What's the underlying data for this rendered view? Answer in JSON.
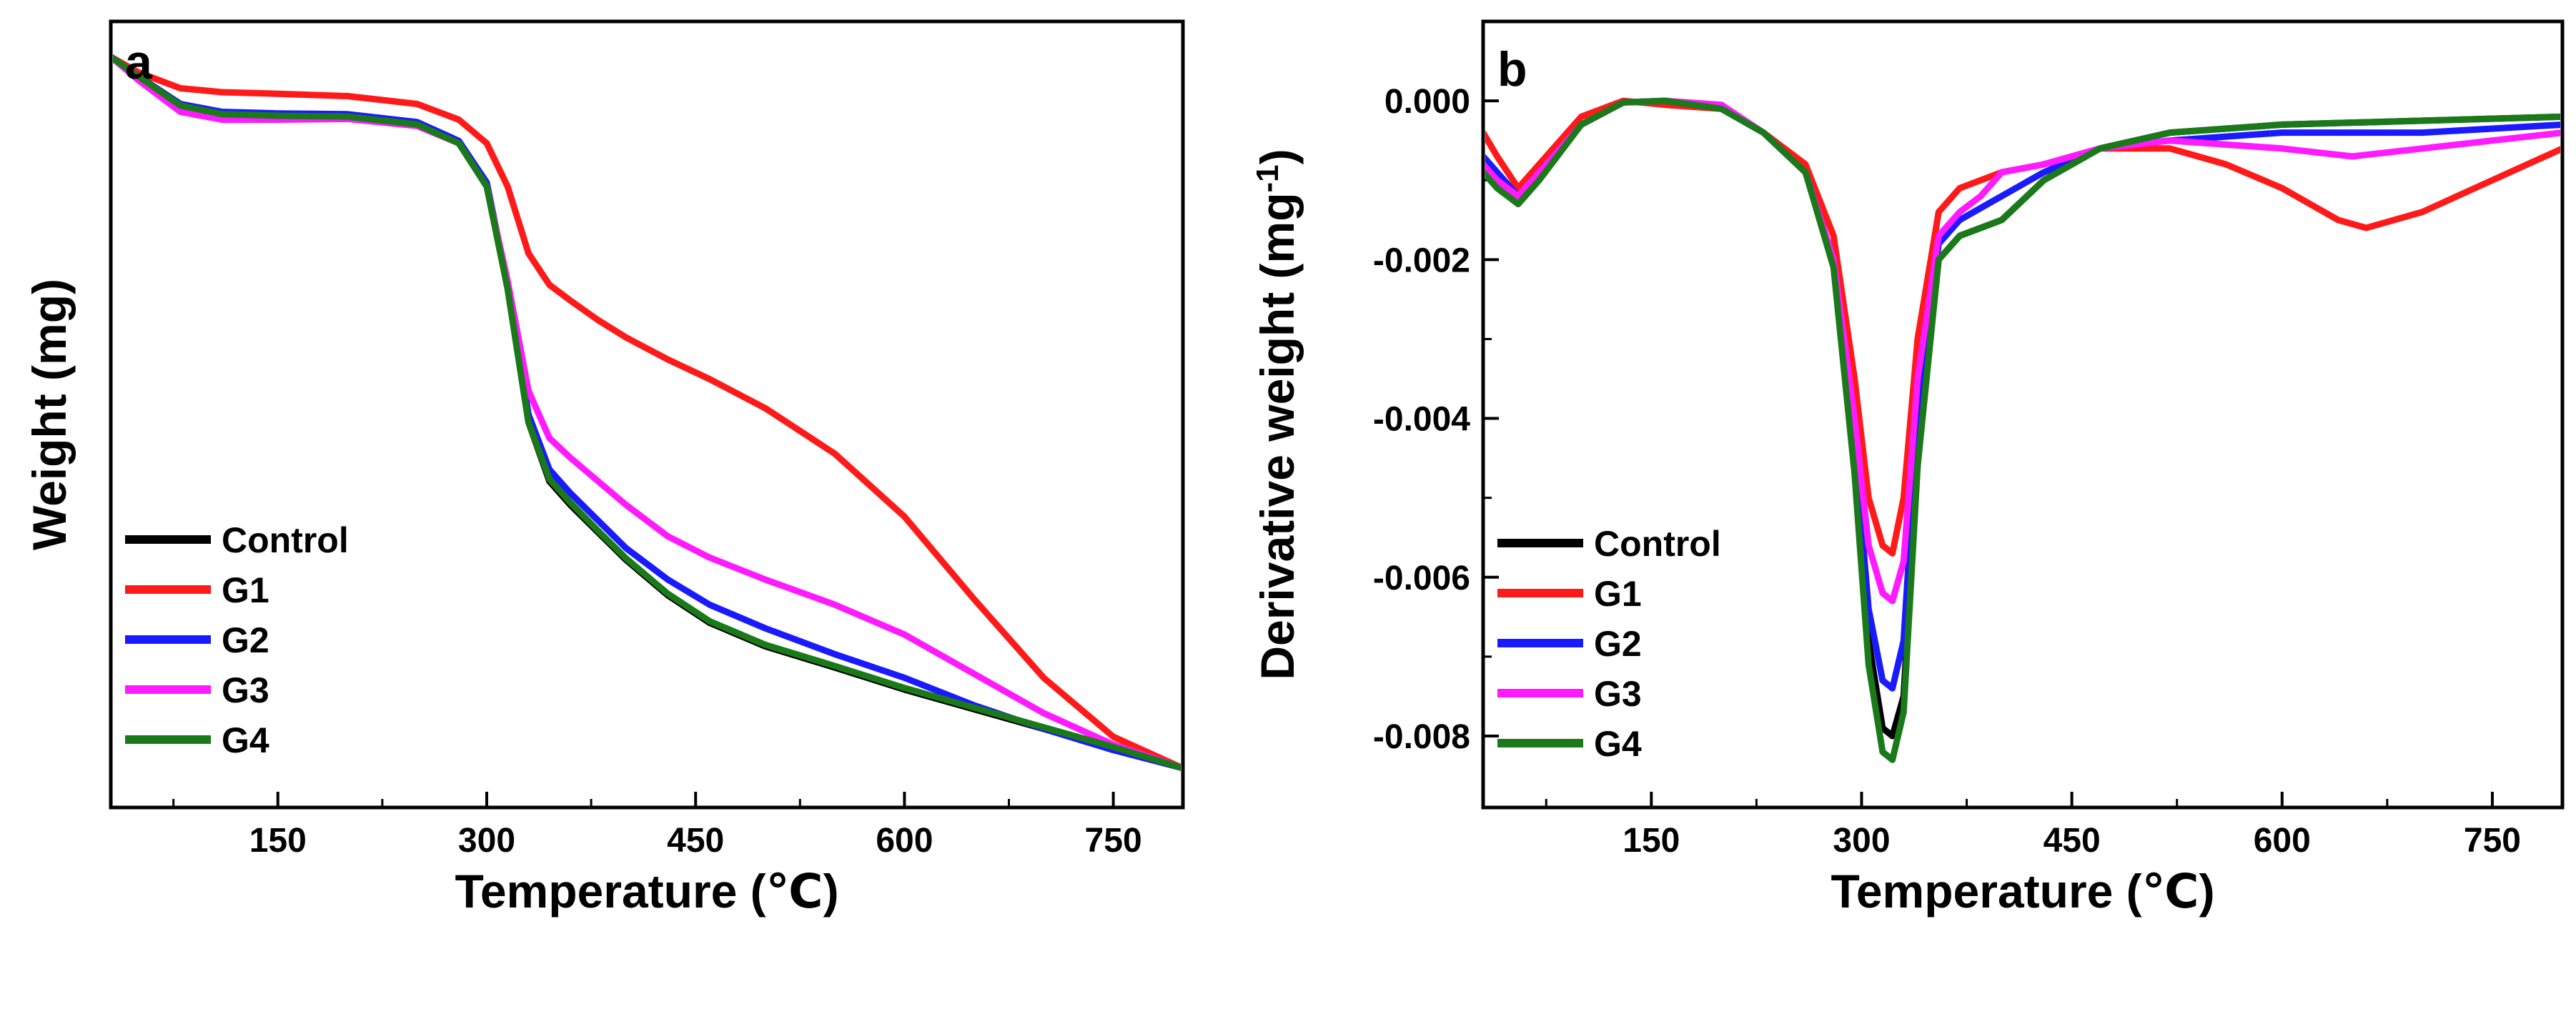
{
  "chart_data": [
    {
      "panel": "a",
      "type": "line",
      "xlabel": "Temperature (℃)",
      "ylabel": "Weight (mg)",
      "xlim": [
        30,
        800
      ],
      "ylim": [
        0,
        1
      ],
      "xticks": [
        150,
        300,
        450,
        600,
        750
      ],
      "xtick_labels": [
        "150",
        "300",
        "450",
        "600",
        "750"
      ],
      "grid": false,
      "legend_position": "bottom-left",
      "series": [
        {
          "name": "Control",
          "color": "#000000",
          "x": [
            30,
            50,
            80,
            110,
            150,
            200,
            250,
            280,
            300,
            315,
            330,
            345,
            360,
            380,
            400,
            430,
            460,
            500,
            550,
            600,
            650,
            700,
            750,
            800
          ],
          "y": [
            0.955,
            0.93,
            0.895,
            0.882,
            0.88,
            0.879,
            0.87,
            0.845,
            0.79,
            0.66,
            0.49,
            0.415,
            0.385,
            0.35,
            0.315,
            0.27,
            0.235,
            0.205,
            0.178,
            0.15,
            0.125,
            0.1,
            0.075,
            0.05
          ]
        },
        {
          "name": "G1",
          "color": "#ff1a1a",
          "x": [
            30,
            50,
            80,
            110,
            150,
            200,
            250,
            280,
            300,
            315,
            330,
            345,
            360,
            380,
            400,
            430,
            460,
            500,
            550,
            600,
            650,
            700,
            750,
            800
          ],
          "y": [
            0.955,
            0.935,
            0.915,
            0.91,
            0.908,
            0.905,
            0.895,
            0.875,
            0.845,
            0.79,
            0.705,
            0.665,
            0.645,
            0.62,
            0.598,
            0.57,
            0.545,
            0.508,
            0.45,
            0.37,
            0.265,
            0.165,
            0.09,
            0.05
          ]
        },
        {
          "name": "G2",
          "color": "#1a1aff",
          "x": [
            30,
            50,
            80,
            110,
            150,
            200,
            250,
            280,
            300,
            315,
            330,
            345,
            360,
            380,
            400,
            430,
            460,
            500,
            550,
            600,
            650,
            700,
            750,
            800
          ],
          "y": [
            0.955,
            0.93,
            0.895,
            0.885,
            0.883,
            0.882,
            0.872,
            0.848,
            0.795,
            0.665,
            0.5,
            0.43,
            0.4,
            0.365,
            0.33,
            0.29,
            0.258,
            0.228,
            0.195,
            0.165,
            0.13,
            0.1,
            0.073,
            0.05
          ]
        },
        {
          "name": "G3",
          "color": "#ff1aff",
          "x": [
            30,
            50,
            80,
            110,
            150,
            200,
            250,
            280,
            300,
            315,
            330,
            345,
            360,
            380,
            400,
            430,
            460,
            500,
            550,
            600,
            650,
            700,
            750,
            800
          ],
          "y": [
            0.955,
            0.925,
            0.885,
            0.875,
            0.875,
            0.876,
            0.867,
            0.845,
            0.79,
            0.67,
            0.53,
            0.47,
            0.445,
            0.415,
            0.385,
            0.345,
            0.318,
            0.29,
            0.258,
            0.22,
            0.17,
            0.12,
            0.08,
            0.05
          ]
        },
        {
          "name": "G4",
          "color": "#1a7a1a",
          "x": [
            30,
            50,
            80,
            110,
            150,
            200,
            250,
            280,
            300,
            315,
            330,
            345,
            360,
            380,
            400,
            430,
            460,
            500,
            550,
            600,
            650,
            700,
            750,
            800
          ],
          "y": [
            0.955,
            0.93,
            0.893,
            0.882,
            0.88,
            0.879,
            0.869,
            0.845,
            0.79,
            0.66,
            0.49,
            0.418,
            0.388,
            0.352,
            0.317,
            0.272,
            0.237,
            0.207,
            0.18,
            0.152,
            0.127,
            0.102,
            0.077,
            0.05
          ]
        }
      ]
    },
    {
      "panel": "b",
      "type": "line",
      "xlabel": "Temperature (℃)",
      "ylabel": "Derivative weight (mg",
      "ylabel_superscript": "-1",
      "ylabel_suffix": ")",
      "xlim": [
        30,
        800
      ],
      "ylim": [
        -0.0089,
        0.001
      ],
      "xticks": [
        150,
        300,
        450,
        600,
        750
      ],
      "xtick_labels": [
        "150",
        "300",
        "450",
        "600",
        "750"
      ],
      "yticks": [
        0.0,
        -0.002,
        -0.004,
        -0.006,
        -0.008
      ],
      "ytick_labels": [
        "0.000",
        "-0.002",
        "-0.004",
        "-0.006",
        "-0.008"
      ],
      "grid": false,
      "legend_position": "bottom-left",
      "series": [
        {
          "name": "Control",
          "color": "#000000",
          "x": [
            30,
            40,
            55,
            70,
            100,
            130,
            160,
            200,
            230,
            260,
            280,
            295,
            305,
            315,
            322,
            330,
            340,
            355,
            370,
            400,
            430,
            470,
            520,
            600,
            700,
            800
          ],
          "y": [
            -0.0008,
            -0.001,
            -0.0012,
            -0.0009,
            -0.0003,
            -2e-05,
            0.0,
            -0.0001,
            -0.0004,
            -0.0009,
            -0.002,
            -0.0045,
            -0.0068,
            -0.0079,
            -0.008,
            -0.0075,
            -0.0045,
            -0.002,
            -0.0017,
            -0.0015,
            -0.001,
            -0.0006,
            -0.0004,
            -0.0003,
            -0.00025,
            -0.0002
          ]
        },
        {
          "name": "G1",
          "color": "#ff1a1a",
          "x": [
            30,
            40,
            55,
            70,
            100,
            130,
            160,
            200,
            230,
            260,
            280,
            295,
            305,
            315,
            322,
            330,
            340,
            355,
            370,
            400,
            430,
            470,
            520,
            560,
            600,
            640,
            660,
            700,
            750,
            800
          ],
          "y": [
            -0.0004,
            -0.0007,
            -0.0011,
            -0.0008,
            -0.0002,
            0.0,
            -5e-05,
            -0.0001,
            -0.0004,
            -0.0008,
            -0.0017,
            -0.0035,
            -0.005,
            -0.0056,
            -0.0057,
            -0.005,
            -0.003,
            -0.0014,
            -0.0011,
            -0.0009,
            -0.0008,
            -0.0006,
            -0.0006,
            -0.0008,
            -0.0011,
            -0.0015,
            -0.0016,
            -0.0014,
            -0.001,
            -0.0006
          ]
        },
        {
          "name": "G2",
          "color": "#1a1aff",
          "x": [
            30,
            40,
            55,
            70,
            100,
            130,
            160,
            200,
            230,
            260,
            280,
            295,
            305,
            315,
            322,
            330,
            340,
            355,
            370,
            400,
            430,
            470,
            520,
            600,
            700,
            800
          ],
          "y": [
            -0.0007,
            -0.0009,
            -0.0012,
            -0.0009,
            -0.0003,
            -2e-05,
            0.0,
            -0.0001,
            -0.0004,
            -0.0009,
            -0.002,
            -0.0043,
            -0.0064,
            -0.0073,
            -0.0074,
            -0.0068,
            -0.004,
            -0.0018,
            -0.0015,
            -0.0012,
            -0.0009,
            -0.0006,
            -0.0005,
            -0.0004,
            -0.0004,
            -0.0003
          ]
        },
        {
          "name": "G3",
          "color": "#ff1aff",
          "x": [
            30,
            40,
            55,
            70,
            100,
            130,
            160,
            200,
            230,
            260,
            280,
            295,
            305,
            315,
            322,
            330,
            340,
            355,
            370,
            385,
            400,
            430,
            470,
            520,
            600,
            650,
            700,
            750,
            800
          ],
          "y": [
            -0.0008,
            -0.001,
            -0.0012,
            -0.0009,
            -0.0003,
            -2e-05,
            0.0,
            -5e-05,
            -0.0004,
            -0.0009,
            -0.002,
            -0.004,
            -0.0056,
            -0.0062,
            -0.0063,
            -0.0058,
            -0.0035,
            -0.0017,
            -0.0014,
            -0.0012,
            -0.0009,
            -0.0008,
            -0.0006,
            -0.0005,
            -0.0006,
            -0.0007,
            -0.0006,
            -0.0005,
            -0.0004
          ]
        },
        {
          "name": "G4",
          "color": "#1a7a1a",
          "x": [
            30,
            40,
            55,
            70,
            100,
            130,
            160,
            200,
            230,
            260,
            280,
            295,
            305,
            315,
            322,
            330,
            340,
            355,
            370,
            400,
            430,
            470,
            520,
            600,
            700,
            800
          ],
          "y": [
            -0.0009,
            -0.0011,
            -0.0013,
            -0.001,
            -0.0003,
            -2e-05,
            0.0,
            -0.0001,
            -0.0004,
            -0.0009,
            -0.0021,
            -0.0047,
            -0.0071,
            -0.0082,
            -0.0083,
            -0.0077,
            -0.0046,
            -0.002,
            -0.0017,
            -0.0015,
            -0.001,
            -0.0006,
            -0.0004,
            -0.0003,
            -0.00025,
            -0.0002
          ]
        }
      ]
    }
  ]
}
